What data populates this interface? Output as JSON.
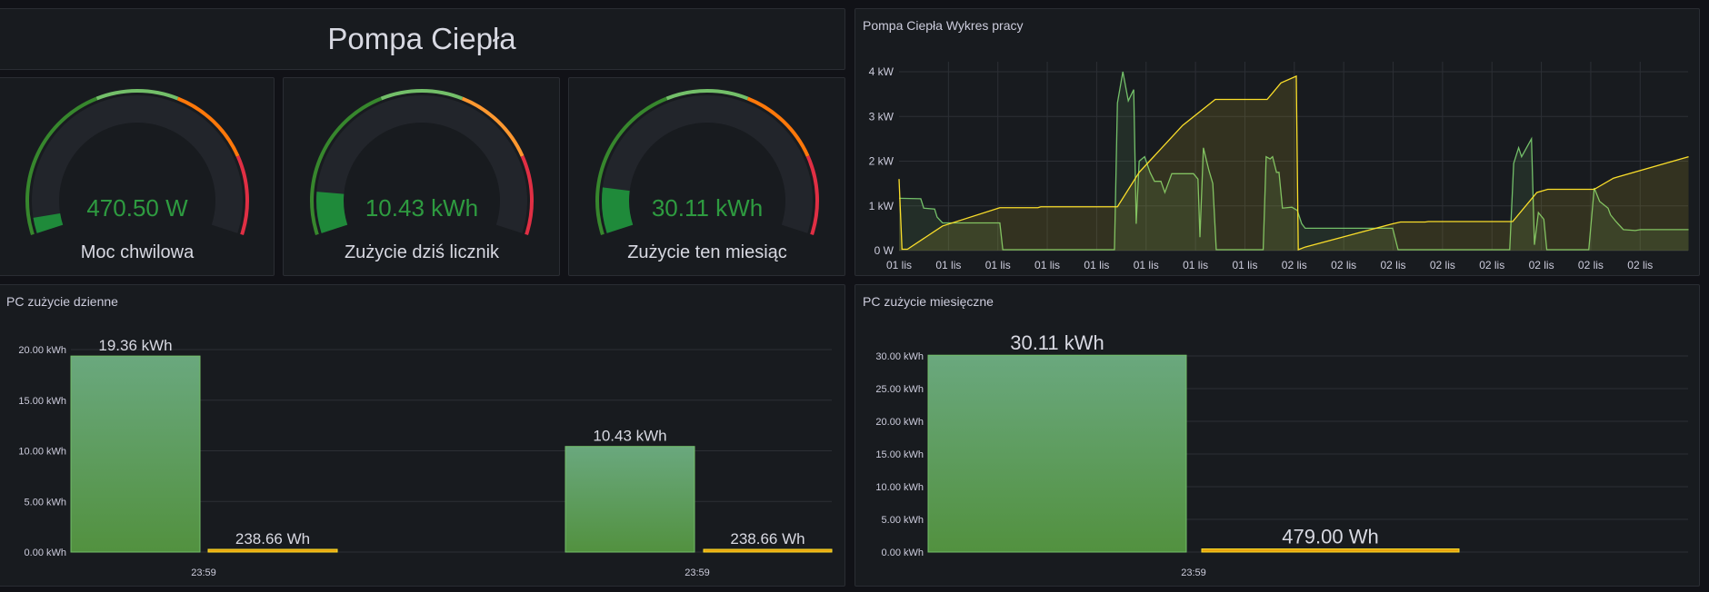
{
  "colors": {
    "background": "#111217",
    "panel": "#181b1f",
    "text": "#ccccdc",
    "green": "#73bf69",
    "dark_green": "#37872d",
    "gauge_value": "#2e9b40",
    "orange": "#ff780a",
    "light_orange": "#ff9830",
    "red": "#e02f44",
    "yellow": "#fade2a",
    "track": "#22252b"
  },
  "header": {
    "title": "Pompa Ciepła"
  },
  "gauges": [
    {
      "value": "470.50 W",
      "label": "Moc chwilowa",
      "fill_fraction": 0.04,
      "thresholds": [
        {
          "to": 0.4,
          "color": "#37872d"
        },
        {
          "to": 0.6,
          "color": "#73bf69"
        },
        {
          "to": 0.806,
          "color": "#ff780a"
        },
        {
          "to": 1,
          "color": "#e02f44"
        }
      ]
    },
    {
      "value": "10.43 kWh",
      "label": "Zużycie dziś licznik",
      "fill_fraction": 0.106,
      "thresholds": [
        {
          "to": 0.4,
          "color": "#37872d"
        },
        {
          "to": 0.6,
          "color": "#73bf69"
        },
        {
          "to": 0.806,
          "color": "#ff9830"
        },
        {
          "to": 1,
          "color": "#e02f44"
        }
      ]
    },
    {
      "value": "30.11 kWh",
      "label": "Zużycie ten miesiąc",
      "fill_fraction": 0.117,
      "thresholds": [
        {
          "to": 0.4,
          "color": "#37872d"
        },
        {
          "to": 0.6,
          "color": "#73bf69"
        },
        {
          "to": 0.806,
          "color": "#ff780a"
        },
        {
          "to": 1,
          "color": "#e02f44"
        }
      ]
    }
  ],
  "chart_data": [
    {
      "title": "Pompa Ciepła Wykres pracy",
      "type": "line",
      "y_ticks": [
        "0 W",
        "1 kW",
        "2 kW",
        "3 kW",
        "4 kW"
      ],
      "ylim_kw": [
        0,
        4.2
      ],
      "x_ticks": [
        "01 lis",
        "01 lis",
        "01 lis",
        "01 lis",
        "01 lis",
        "01 lis",
        "01 lis",
        "01 lis",
        "02 lis",
        "02 lis",
        "02 lis",
        "02 lis",
        "02 lis",
        "02 lis",
        "02 lis",
        "02 lis"
      ],
      "grid": true,
      "series": [
        {
          "color": "#73bf69",
          "points_kw": [
            [
              0,
              1.17
            ],
            [
              0.44,
              1.16
            ],
            [
              0.5,
              0.95
            ],
            [
              0.72,
              0.93
            ],
            [
              0.77,
              0.75
            ],
            [
              0.88,
              0.62
            ],
            [
              2.04,
              0.62
            ],
            [
              2.1,
              0.02
            ],
            [
              4.36,
              0.02
            ],
            [
              4.42,
              3.3
            ],
            [
              4.53,
              4.0
            ],
            [
              4.64,
              3.35
            ],
            [
              4.75,
              3.6
            ],
            [
              4.8,
              0.6
            ],
            [
              4.86,
              2.0
            ],
            [
              4.97,
              2.1
            ],
            [
              5.08,
              1.75
            ],
            [
              5.17,
              1.55
            ],
            [
              5.3,
              1.55
            ],
            [
              5.38,
              1.3
            ],
            [
              5.52,
              1.72
            ],
            [
              5.96,
              1.72
            ],
            [
              6.05,
              1.6
            ],
            [
              6.09,
              0.3
            ],
            [
              6.16,
              2.3
            ],
            [
              6.27,
              1.8
            ],
            [
              6.35,
              1.5
            ],
            [
              6.42,
              0.02
            ],
            [
              7.37,
              0.02
            ],
            [
              7.43,
              2.1
            ],
            [
              7.51,
              2.05
            ],
            [
              7.56,
              2.1
            ],
            [
              7.64,
              1.75
            ],
            [
              7.69,
              1.75
            ],
            [
              7.76,
              0.95
            ],
            [
              7.95,
              0.97
            ],
            [
              8.06,
              0.9
            ],
            [
              8.15,
              0.6
            ],
            [
              8.22,
              0.5
            ],
            [
              9.99,
              0.5
            ],
            [
              10.1,
              0.02
            ],
            [
              12.36,
              0.02
            ],
            [
              12.44,
              1.95
            ],
            [
              12.54,
              2.3
            ],
            [
              12.6,
              2.1
            ],
            [
              12.8,
              2.5
            ],
            [
              12.86,
              0.13
            ],
            [
              12.94,
              0.85
            ],
            [
              13.05,
              0.7
            ],
            [
              13.11,
              0.02
            ],
            [
              13.96,
              0.02
            ],
            [
              14.07,
              1.4
            ],
            [
              14.18,
              1.1
            ],
            [
              14.35,
              0.95
            ],
            [
              14.4,
              0.8
            ],
            [
              14.51,
              0.65
            ],
            [
              14.66,
              0.47
            ],
            [
              14.9,
              0.45
            ],
            [
              15.01,
              0.47
            ],
            [
              15.98,
              0.47
            ]
          ]
        },
        {
          "color": "#fade2a",
          "points_kw": [
            [
              0,
              1.6
            ],
            [
              0.06,
              0.03
            ],
            [
              0.17,
              0.03
            ],
            [
              0.88,
              0.55
            ],
            [
              2.04,
              0.96
            ],
            [
              2.81,
              0.96
            ],
            [
              2.87,
              0.98
            ],
            [
              4.42,
              0.98
            ],
            [
              4.86,
              1.75
            ],
            [
              5.74,
              2.8
            ],
            [
              6.4,
              3.38
            ],
            [
              7.45,
              3.38
            ],
            [
              7.73,
              3.75
            ],
            [
              8.04,
              3.9
            ],
            [
              8.08,
              0.02
            ],
            [
              8.22,
              0.08
            ],
            [
              9.99,
              0.6
            ],
            [
              10.15,
              0.64
            ],
            [
              10.65,
              0.64
            ],
            [
              10.71,
              0.65
            ],
            [
              12.42,
              0.65
            ],
            [
              12.91,
              1.3
            ],
            [
              13.13,
              1.37
            ],
            [
              14.07,
              1.37
            ],
            [
              14.46,
              1.62
            ],
            [
              15.98,
              2.1
            ]
          ]
        }
      ]
    },
    {
      "title": "PC zużycie dzienne",
      "type": "bar",
      "y_ticks": [
        "0.00 kWh",
        "5.00 kWh",
        "10.00 kWh",
        "15.00 kWh",
        "20.00 kWh"
      ],
      "ylim": [
        0,
        20
      ],
      "categories": [
        "23:59",
        "23:59"
      ],
      "bars": [
        {
          "value": 19.36,
          "label": "19.36 kWh",
          "color": "#73bf69"
        },
        {
          "value": 0.23866,
          "label": "238.66 Wh",
          "color": "#fade2a"
        },
        {
          "value": 10.43,
          "label": "10.43 kWh",
          "color": "#73bf69"
        },
        {
          "value": 0.23866,
          "label": "238.66 Wh",
          "color": "#fade2a"
        }
      ]
    },
    {
      "title": "PC zużycie miesięczne",
      "type": "bar",
      "y_ticks": [
        "0.00 kWh",
        "5.00 kWh",
        "10.00 kWh",
        "15.00 kWh",
        "20.00 kWh",
        "25.00 kWh",
        "30.00 kWh"
      ],
      "ylim": [
        0,
        30
      ],
      "categories": [
        "23:59"
      ],
      "bars": [
        {
          "value": 30.11,
          "label": "30.11 kWh",
          "color": "#73bf69"
        },
        {
          "value": 0.479,
          "label": "479.00 Wh",
          "color": "#fade2a"
        }
      ]
    }
  ]
}
